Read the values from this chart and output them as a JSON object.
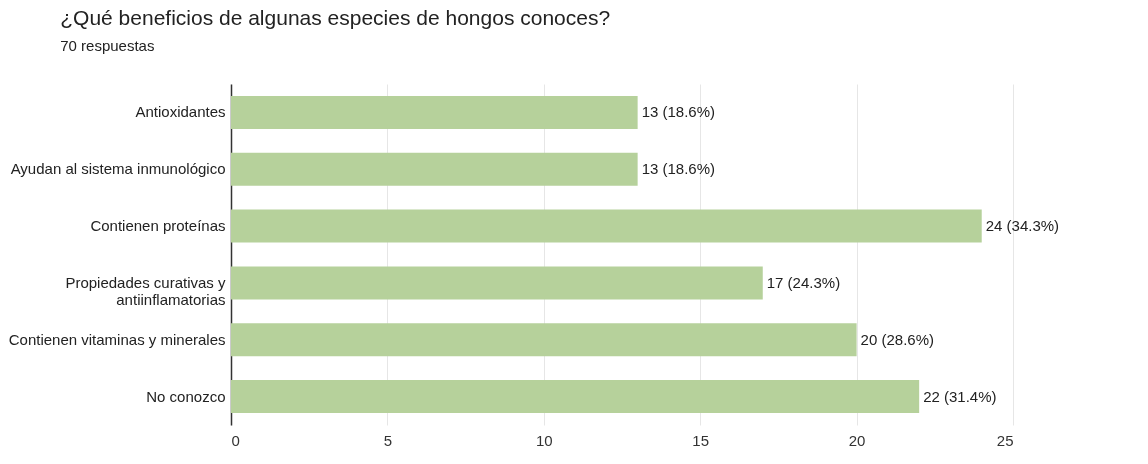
{
  "chart_data": {
    "type": "bar",
    "orientation": "horizontal",
    "title": "¿Qué beneficios de algunas especies de hongos conoces?",
    "subtitle": "70 respuestas",
    "categories": [
      "Antioxidantes",
      "Ayudan al sistema inmunológico",
      "Contienen proteínas",
      "Propiedades curativas y antiinflamatorias",
      "Contienen vitaminas y minerales",
      "No conozco"
    ],
    "values": [
      13,
      13,
      24,
      17,
      20,
      22
    ],
    "value_labels": [
      "13 (18.6%)",
      "13 (18.6%)",
      "24 (34.3%)",
      "17 (24.3%)",
      "20 (28.6%)",
      "22 (31.4%)"
    ],
    "color": "#b6d19b",
    "xlim": [
      0,
      25
    ],
    "xticks": [
      0,
      5,
      10,
      15,
      20,
      25
    ],
    "grid": "x"
  }
}
